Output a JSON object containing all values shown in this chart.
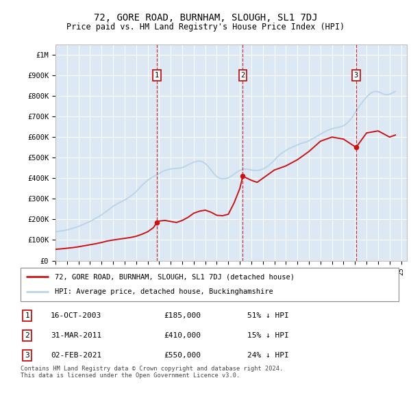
{
  "title": "72, GORE ROAD, BURNHAM, SLOUGH, SL1 7DJ",
  "subtitle": "Price paid vs. HM Land Registry's House Price Index (HPI)",
  "ylabel_ticks": [
    "£0",
    "£100K",
    "£200K",
    "£300K",
    "£400K",
    "£500K",
    "£600K",
    "£700K",
    "£800K",
    "£900K",
    "£1M"
  ],
  "ytick_values": [
    0,
    100000,
    200000,
    300000,
    400000,
    500000,
    600000,
    700000,
    800000,
    900000,
    1000000
  ],
  "ylim": [
    0,
    1050000
  ],
  "xlim_start": 1995.0,
  "xlim_end": 2025.5,
  "hpi_color": "#bad4e8",
  "price_color": "#cc1111",
  "plot_bg_color": "#dce9f5",
  "transaction_dates": [
    2003.79,
    2011.25,
    2021.09
  ],
  "transaction_prices": [
    185000,
    410000,
    550000
  ],
  "transaction_labels": [
    "1",
    "2",
    "3"
  ],
  "transaction_info": [
    {
      "label": "1",
      "date": "16-OCT-2003",
      "price": "£185,000",
      "hpi": "51% ↓ HPI"
    },
    {
      "label": "2",
      "date": "31-MAR-2011",
      "price": "£410,000",
      "hpi": "15% ↓ HPI"
    },
    {
      "label": "3",
      "date": "02-FEB-2021",
      "price": "£550,000",
      "hpi": "24% ↓ HPI"
    }
  ],
  "legend_line1": "72, GORE ROAD, BURNHAM, SLOUGH, SL1 7DJ (detached house)",
  "legend_line2": "HPI: Average price, detached house, Buckinghamshire",
  "footnote": "Contains HM Land Registry data © Crown copyright and database right 2024.\nThis data is licensed under the Open Government Licence v3.0.",
  "xtick_years": [
    1995,
    1996,
    1997,
    1998,
    1999,
    2000,
    2001,
    2002,
    2003,
    2004,
    2005,
    2006,
    2007,
    2008,
    2009,
    2010,
    2011,
    2012,
    2013,
    2014,
    2015,
    2016,
    2017,
    2018,
    2019,
    2020,
    2021,
    2022,
    2023,
    2024,
    2025
  ],
  "hpi_x": [
    1995.0,
    1995.25,
    1995.5,
    1995.75,
    1996.0,
    1996.25,
    1996.5,
    1996.75,
    1997.0,
    1997.25,
    1997.5,
    1997.75,
    1998.0,
    1998.25,
    1998.5,
    1998.75,
    1999.0,
    1999.25,
    1999.5,
    1999.75,
    2000.0,
    2000.25,
    2000.5,
    2000.75,
    2001.0,
    2001.25,
    2001.5,
    2001.75,
    2002.0,
    2002.25,
    2002.5,
    2002.75,
    2003.0,
    2003.25,
    2003.5,
    2003.75,
    2004.0,
    2004.25,
    2004.5,
    2004.75,
    2005.0,
    2005.25,
    2005.5,
    2005.75,
    2006.0,
    2006.25,
    2006.5,
    2006.75,
    2007.0,
    2007.25,
    2007.5,
    2007.75,
    2008.0,
    2008.25,
    2008.5,
    2008.75,
    2009.0,
    2009.25,
    2009.5,
    2009.75,
    2010.0,
    2010.25,
    2010.5,
    2010.75,
    2011.0,
    2011.25,
    2011.5,
    2011.75,
    2012.0,
    2012.25,
    2012.5,
    2012.75,
    2013.0,
    2013.25,
    2013.5,
    2013.75,
    2014.0,
    2014.25,
    2014.5,
    2014.75,
    2015.0,
    2015.25,
    2015.5,
    2015.75,
    2016.0,
    2016.25,
    2016.5,
    2016.75,
    2017.0,
    2017.25,
    2017.5,
    2017.75,
    2018.0,
    2018.25,
    2018.5,
    2018.75,
    2019.0,
    2019.25,
    2019.5,
    2019.75,
    2020.0,
    2020.25,
    2020.5,
    2020.75,
    2021.0,
    2021.25,
    2021.5,
    2021.75,
    2022.0,
    2022.25,
    2022.5,
    2022.75,
    2023.0,
    2023.25,
    2023.5,
    2023.75,
    2024.0,
    2024.25,
    2024.5
  ],
  "hpi_y": [
    140000,
    142000,
    144000,
    146000,
    149000,
    153000,
    157000,
    161000,
    166000,
    172000,
    178000,
    184000,
    190000,
    198000,
    206000,
    214000,
    222000,
    232000,
    242000,
    253000,
    264000,
    272000,
    280000,
    287000,
    294000,
    302000,
    312000,
    322000,
    335000,
    350000,
    365000,
    378000,
    390000,
    400000,
    408000,
    415000,
    423000,
    432000,
    438000,
    442000,
    445000,
    447000,
    448000,
    449000,
    452000,
    458000,
    465000,
    472000,
    478000,
    482000,
    484000,
    480000,
    472000,
    458000,
    440000,
    422000,
    408000,
    400000,
    397000,
    398000,
    402000,
    410000,
    420000,
    430000,
    438000,
    443000,
    445000,
    443000,
    440000,
    438000,
    438000,
    440000,
    445000,
    452000,
    462000,
    474000,
    488000,
    503000,
    516000,
    526000,
    535000,
    543000,
    550000,
    556000,
    562000,
    568000,
    572000,
    576000,
    582000,
    590000,
    598000,
    606000,
    614000,
    622000,
    630000,
    636000,
    640000,
    644000,
    647000,
    650000,
    655000,
    665000,
    678000,
    696000,
    718000,
    740000,
    760000,
    778000,
    794000,
    808000,
    818000,
    822000,
    820000,
    815000,
    808000,
    805000,
    808000,
    815000,
    822000
  ],
  "price_x": [
    1995.0,
    1995.5,
    1996.0,
    1996.5,
    1997.0,
    1997.5,
    1998.0,
    1998.5,
    1999.0,
    1999.5,
    2000.0,
    2000.5,
    2001.0,
    2001.5,
    2002.0,
    2002.5,
    2003.0,
    2003.5,
    2003.79,
    2004.0,
    2004.5,
    2005.0,
    2005.5,
    2006.0,
    2006.5,
    2007.0,
    2007.5,
    2008.0,
    2008.5,
    2009.0,
    2009.5,
    2010.0,
    2010.5,
    2011.0,
    2011.25,
    2012.0,
    2012.5,
    2013.0,
    2013.5,
    2014.0,
    2015.0,
    2016.0,
    2017.0,
    2018.0,
    2019.0,
    2020.0,
    2021.09,
    2022.0,
    2023.0,
    2024.0,
    2024.5
  ],
  "price_y": [
    55000,
    57000,
    60000,
    63000,
    67000,
    72000,
    77000,
    82000,
    88000,
    95000,
    100000,
    104000,
    108000,
    112000,
    118000,
    128000,
    140000,
    160000,
    185000,
    192000,
    195000,
    190000,
    185000,
    195000,
    210000,
    230000,
    240000,
    245000,
    235000,
    220000,
    218000,
    225000,
    280000,
    350000,
    410000,
    390000,
    380000,
    400000,
    420000,
    440000,
    460000,
    490000,
    530000,
    580000,
    600000,
    590000,
    550000,
    620000,
    630000,
    600000,
    610000
  ]
}
